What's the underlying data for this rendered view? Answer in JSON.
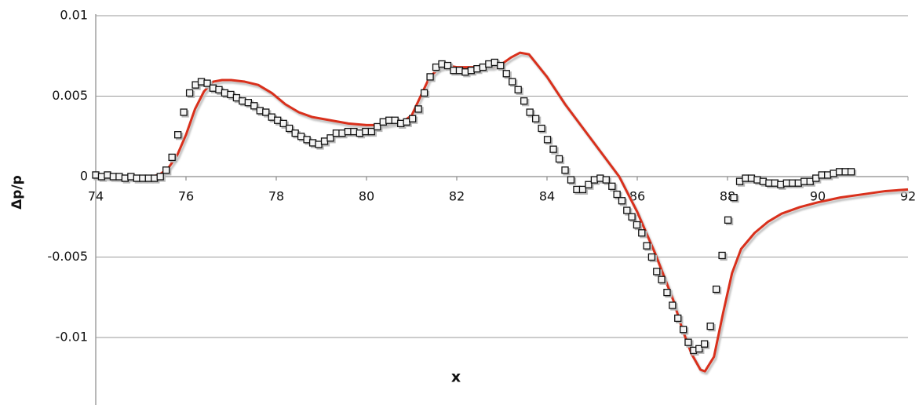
{
  "chart_data": {
    "type": "scatter",
    "xlabel": "x",
    "ylabel": "Δp/p",
    "xlim": [
      74,
      92
    ],
    "ylim": [
      -0.014,
      0.01
    ],
    "xticks": [
      74,
      76,
      78,
      80,
      82,
      84,
      86,
      88,
      90,
      92
    ],
    "yticks": [
      0.01,
      0.005,
      0,
      -0.005,
      -0.01
    ],
    "grid": true,
    "series": [
      {
        "kind": "markers",
        "marker": "square",
        "color": "#111111",
        "x": [
          74.0,
          74.13,
          74.26,
          74.39,
          74.52,
          74.65,
          74.78,
          74.91,
          75.04,
          75.17,
          75.3,
          75.43,
          75.56,
          75.69,
          75.82,
          75.95,
          76.08,
          76.21,
          76.34,
          76.47,
          76.6,
          76.73,
          76.86,
          76.99,
          77.12,
          77.25,
          77.38,
          77.51,
          77.64,
          77.77,
          77.9,
          78.03,
          78.16,
          78.29,
          78.42,
          78.55,
          78.68,
          78.81,
          78.94,
          79.07,
          79.2,
          79.33,
          79.46,
          79.59,
          79.72,
          79.85,
          79.98,
          80.11,
          80.24,
          80.37,
          80.5,
          80.63,
          80.76,
          80.89,
          81.02,
          81.15,
          81.28,
          81.41,
          81.54,
          81.67,
          81.8,
          81.93,
          82.06,
          82.19,
          82.32,
          82.45,
          82.58,
          82.71,
          82.84,
          82.97,
          83.1,
          83.23,
          83.36,
          83.49,
          83.62,
          83.75,
          83.88,
          84.01,
          84.14,
          84.27,
          84.4,
          84.53,
          84.66,
          84.79,
          84.92,
          85.05,
          85.18,
          85.31,
          85.44,
          85.55,
          85.66,
          85.77,
          85.88,
          85.99,
          86.1,
          86.21,
          86.32,
          86.43,
          86.54,
          86.66,
          86.78,
          86.9,
          87.02,
          87.13,
          87.25,
          87.37,
          87.49,
          87.62,
          87.75,
          87.88,
          88.01,
          88.14,
          88.27,
          88.4,
          88.53,
          88.66,
          88.79,
          88.92,
          89.05,
          89.18,
          89.31,
          89.44,
          89.57,
          89.7,
          89.83,
          89.96,
          90.09,
          90.22,
          90.35,
          90.48,
          90.61,
          90.74
        ],
        "values": [
          0.0001,
          0,
          0.0001,
          0,
          0,
          -0.0001,
          0,
          -0.0001,
          -0.0001,
          -0.0001,
          -0.0001,
          0,
          0.0004,
          0.0012,
          0.0026,
          0.004,
          0.0052,
          0.0057,
          0.0059,
          0.0058,
          0.0055,
          0.0054,
          0.0052,
          0.0051,
          0.0049,
          0.0047,
          0.0046,
          0.0044,
          0.0041,
          0.004,
          0.0037,
          0.0035,
          0.0033,
          0.003,
          0.0027,
          0.0025,
          0.0023,
          0.0021,
          0.002,
          0.0022,
          0.0024,
          0.0027,
          0.0027,
          0.0028,
          0.0028,
          0.0027,
          0.0028,
          0.0028,
          0.0031,
          0.0034,
          0.0035,
          0.0035,
          0.0033,
          0.0034,
          0.0036,
          0.0042,
          0.0052,
          0.0062,
          0.0068,
          0.007,
          0.0069,
          0.0066,
          0.0066,
          0.0065,
          0.0066,
          0.0067,
          0.0068,
          0.007,
          0.0071,
          0.0069,
          0.0064,
          0.0059,
          0.0054,
          0.0047,
          0.004,
          0.0036,
          0.003,
          0.0023,
          0.0017,
          0.0011,
          0.0004,
          -0.0002,
          -0.0008,
          -0.0008,
          -0.0005,
          -0.0002,
          -0.0001,
          -0.0002,
          -0.0006,
          -0.0011,
          -0.0015,
          -0.0021,
          -0.0025,
          -0.003,
          -0.0035,
          -0.0043,
          -0.005,
          -0.0059,
          -0.0064,
          -0.0072,
          -0.008,
          -0.0088,
          -0.0095,
          -0.0103,
          -0.0108,
          -0.0107,
          -0.0104,
          -0.0093,
          -0.007,
          -0.0049,
          -0.0027,
          -0.0013,
          -0.0003,
          -0.0001,
          -0.0001,
          -0.0002,
          -0.0003,
          -0.0004,
          -0.0004,
          -0.0005,
          -0.0004,
          -0.0004,
          -0.0004,
          -0.0003,
          -0.0003,
          -0.0001,
          0.0001,
          0.0001,
          0.0002,
          0.0003,
          0.0003,
          0.0003
        ]
      },
      {
        "kind": "line",
        "color": "#d9301c",
        "x": [
          74,
          74.5,
          75,
          75.4,
          75.6,
          75.8,
          76.0,
          76.2,
          76.4,
          76.6,
          76.8,
          77.0,
          77.3,
          77.6,
          77.9,
          78.2,
          78.5,
          78.8,
          79.2,
          79.6,
          80.0,
          80.4,
          80.8,
          81.0,
          81.2,
          81.4,
          81.6,
          81.8,
          82.0,
          82.4,
          82.8,
          83.0,
          83.2,
          83.4,
          83.6,
          83.8,
          84.0,
          84.4,
          84.8,
          85.2,
          85.6,
          86.0,
          86.4,
          86.8,
          87.0,
          87.2,
          87.4,
          87.5,
          87.7,
          87.9,
          88.1,
          88.3,
          88.6,
          88.9,
          89.2,
          89.6,
          90.0,
          90.5,
          91.0,
          91.5,
          92.0
        ],
        "values": [
          0,
          -0.0001,
          -0.0001,
          0.0001,
          0.0005,
          0.0013,
          0.0026,
          0.0042,
          0.0053,
          0.0059,
          0.006,
          0.006,
          0.0059,
          0.0057,
          0.0052,
          0.0045,
          0.004,
          0.0037,
          0.0035,
          0.0033,
          0.0032,
          0.0032,
          0.0034,
          0.0038,
          0.005,
          0.0062,
          0.0067,
          0.0069,
          0.0068,
          0.0068,
          0.0068,
          0.007,
          0.0074,
          0.0077,
          0.0076,
          0.0069,
          0.0062,
          0.0045,
          0.003,
          0.0015,
          0,
          -0.0022,
          -0.0048,
          -0.0077,
          -0.0095,
          -0.011,
          -0.012,
          -0.0121,
          -0.0112,
          -0.0085,
          -0.006,
          -0.0045,
          -0.0035,
          -0.0028,
          -0.0023,
          -0.0019,
          -0.0016,
          -0.0013,
          -0.0011,
          -0.0009,
          -0.0008
        ]
      }
    ]
  }
}
